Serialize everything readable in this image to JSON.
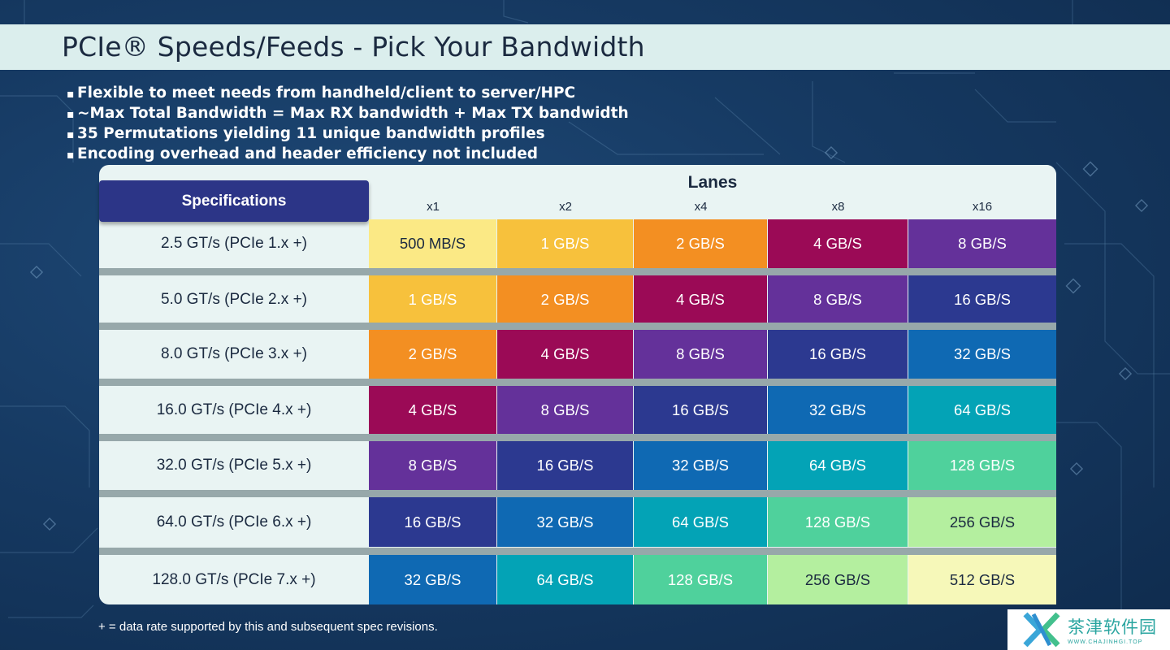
{
  "slide": {
    "title": "PCIe® Speeds/Feeds - Pick Your Bandwidth",
    "bullets": [
      "Flexible to meet needs from handheld/client to server/HPC",
      "~Max Total Bandwidth = Max RX bandwidth + Max TX bandwidth",
      "35 Permutations yielding 11 unique bandwidth profiles",
      "Encoding overhead and header efficiency not included"
    ],
    "footnote": "+ = data rate supported by this and subsequent spec revisions."
  },
  "table": {
    "spec_header": "Specifications",
    "lanes_header": "Lanes",
    "lanes": [
      "x1",
      "x2",
      "x4",
      "x8",
      "x16"
    ],
    "rows": [
      {
        "spec": "2.5 GT/s (PCIe 1.x +)",
        "values": [
          "500 MB/S",
          "1 GB/S",
          "2 GB/S",
          "4 GB/S",
          "8 GB/S"
        ]
      },
      {
        "spec": "5.0 GT/s (PCIe 2.x +)",
        "values": [
          "1 GB/S",
          "2 GB/S",
          "4 GB/S",
          "8 GB/S",
          "16 GB/S"
        ]
      },
      {
        "spec": "8.0 GT/s (PCIe 3.x +)",
        "values": [
          "2 GB/S",
          "4 GB/S",
          "8 GB/S",
          "16 GB/S",
          "32 GB/S"
        ]
      },
      {
        "spec": "16.0 GT/s (PCIe 4.x +)",
        "values": [
          "4 GB/S",
          "8 GB/S",
          "16 GB/S",
          "32 GB/S",
          "64 GB/S"
        ]
      },
      {
        "spec": "32.0 GT/s (PCIe 5.x +)",
        "values": [
          "8 GB/S",
          "16 GB/S",
          "32 GB/S",
          "64 GB/S",
          "128 GB/S"
        ]
      },
      {
        "spec": "64.0 GT/s (PCIe 6.x +)",
        "values": [
          "16 GB/S",
          "32 GB/S",
          "64 GB/S",
          "128 GB/S",
          "256 GB/S"
        ]
      },
      {
        "spec": "128.0 GT/s (PCIe 7.x +)",
        "values": [
          "32 GB/S",
          "64 GB/S",
          "128 GB/S",
          "256 GB/S",
          "512 GB/S"
        ]
      }
    ],
    "bandwidth_colors": {
      "500 MB/S": "#fbe985",
      "1 GB/S": "#f7c13c",
      "2 GB/S": "#f38f22",
      "4 GB/S": "#9b0a56",
      "8 GB/S": "#64319a",
      "16 GB/S": "#2c3990",
      "32 GB/S": "#0f69b3",
      "64 GB/S": "#03a3b6",
      "128 GB/S": "#4fd19c",
      "256 GB/S": "#b4ef9f",
      "512 GB/S": "#f6f8b9"
    },
    "dark_text_values": [
      "500 MB/S",
      "256 GB/S",
      "512 GB/S"
    ]
  },
  "watermark": {
    "name": "茶津软件园",
    "url": "WWW.CHAJINHGI.TOP"
  }
}
